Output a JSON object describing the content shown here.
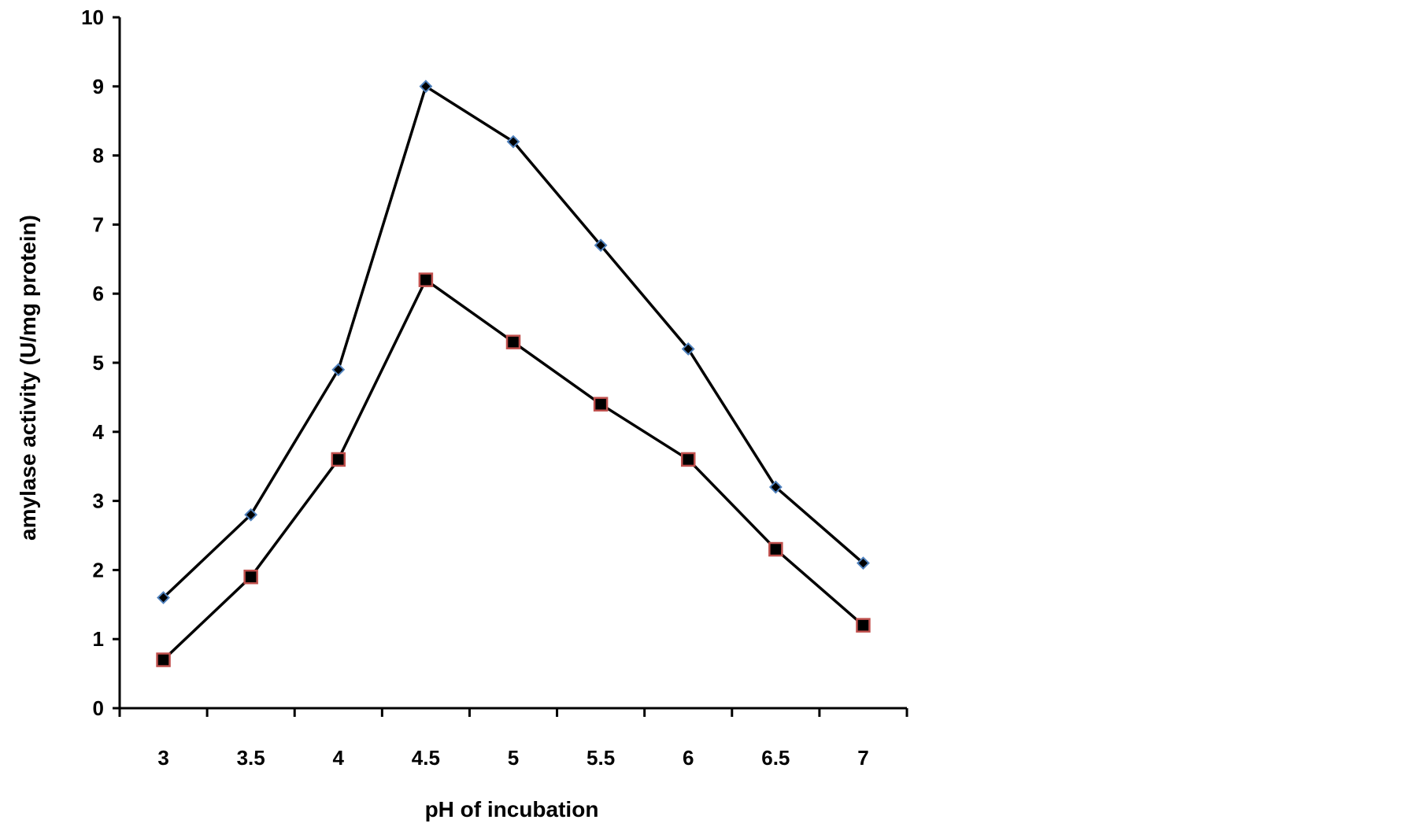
{
  "chart_data": {
    "type": "line",
    "title": "",
    "xlabel": "pH of incubation",
    "ylabel": "amylase activity (U/mg protein)",
    "categories": [
      "3",
      "3.5",
      "4",
      "4.5",
      "5",
      "5.5",
      "6",
      "6.5",
      "7"
    ],
    "ylim": [
      0,
      10
    ],
    "yticks": [
      0,
      1,
      2,
      3,
      4,
      5,
      6,
      7,
      8,
      9,
      10
    ],
    "grid": false,
    "legend": "none",
    "series": [
      {
        "marker": "diamond",
        "marker_fill": "#000000",
        "marker_edge": "#4f81bd",
        "line_color": "#000000",
        "values": [
          1.6,
          2.8,
          4.9,
          9.0,
          8.2,
          6.7,
          5.2,
          3.2,
          2.1
        ]
      },
      {
        "marker": "square",
        "marker_fill": "#000000",
        "marker_edge": "#c0504d",
        "line_color": "#000000",
        "values": [
          0.7,
          1.9,
          3.6,
          6.2,
          5.3,
          4.4,
          3.6,
          2.3,
          1.2
        ]
      }
    ]
  }
}
